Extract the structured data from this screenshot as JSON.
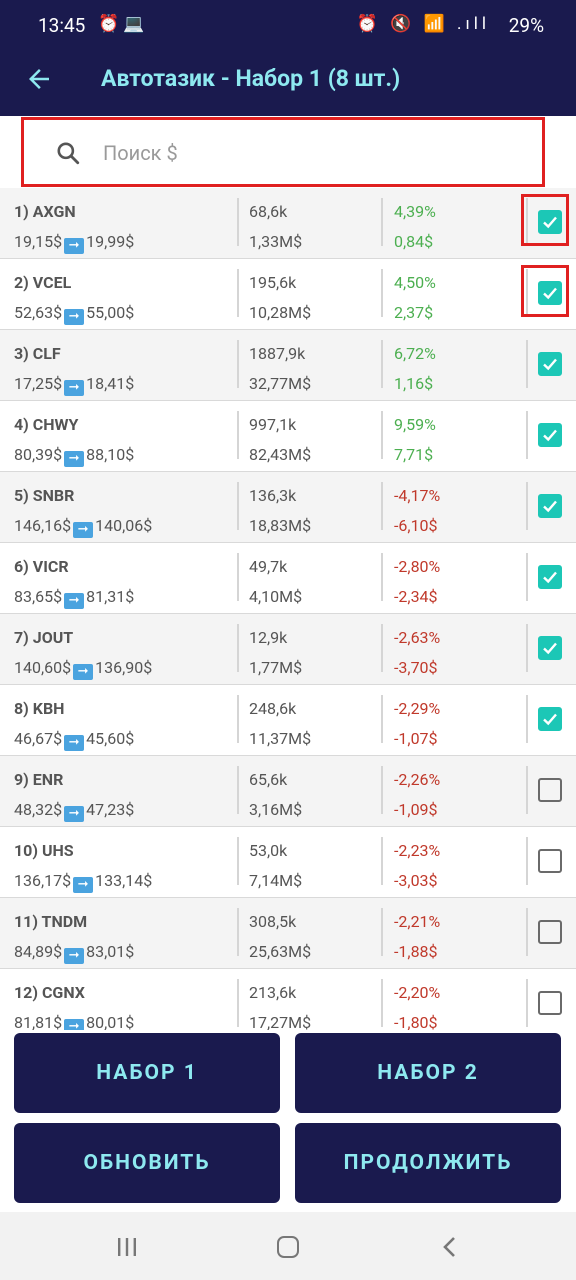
{
  "status_bar": {
    "time": "13:45",
    "left_icons": "⏰ 💻",
    "right_icons": "⏰ 🔇 📶 .ıll",
    "battery": "29%"
  },
  "app_bar": {
    "title": "Автотазик - Набор 1 (8 шт.)",
    "back_icon": "arrow-left-icon"
  },
  "search": {
    "placeholder": "Поиск $",
    "icon": "search-icon"
  },
  "rows": [
    {
      "ticker": "1) AXGN",
      "price_from": "19,15$",
      "price_to": "19,99$",
      "volume": "68,6k",
      "money": "1,33M$",
      "pct": "4,39%",
      "chg": "0,84$",
      "direction": "up",
      "checked": true
    },
    {
      "ticker": "2) VCEL",
      "price_from": "52,63$",
      "price_to": "55,00$",
      "volume": "195,6k",
      "money": "10,28M$",
      "pct": "4,50%",
      "chg": "2,37$",
      "direction": "up",
      "checked": true
    },
    {
      "ticker": "3) CLF",
      "price_from": "17,25$",
      "price_to": "18,41$",
      "volume": "1887,9k",
      "money": "32,77M$",
      "pct": "6,72%",
      "chg": "1,16$",
      "direction": "up",
      "checked": true
    },
    {
      "ticker": "4) CHWY",
      "price_from": "80,39$",
      "price_to": "88,10$",
      "volume": "997,1k",
      "money": "82,43M$",
      "pct": "9,59%",
      "chg": "7,71$",
      "direction": "up",
      "checked": true
    },
    {
      "ticker": "5) SNBR",
      "price_from": "146,16$",
      "price_to": "140,06$",
      "volume": "136,3k",
      "money": "18,83M$",
      "pct": "-4,17%",
      "chg": "-6,10$",
      "direction": "down",
      "checked": true
    },
    {
      "ticker": "6) VICR",
      "price_from": "83,65$",
      "price_to": "81,31$",
      "volume": "49,7k",
      "money": "4,10M$",
      "pct": "-2,80%",
      "chg": "-2,34$",
      "direction": "down",
      "checked": true
    },
    {
      "ticker": "7) JOUT",
      "price_from": "140,60$",
      "price_to": "136,90$",
      "volume": "12,9k",
      "money": "1,77M$",
      "pct": "-2,63%",
      "chg": "-3,70$",
      "direction": "down",
      "checked": true
    },
    {
      "ticker": "8) KBH",
      "price_from": "46,67$",
      "price_to": "45,60$",
      "volume": "248,6k",
      "money": "11,37M$",
      "pct": "-2,29%",
      "chg": "-1,07$",
      "direction": "down",
      "checked": true
    },
    {
      "ticker": "9) ENR",
      "price_from": "48,32$",
      "price_to": "47,23$",
      "volume": "65,6k",
      "money": "3,16M$",
      "pct": "-2,26%",
      "chg": "-1,09$",
      "direction": "down",
      "checked": false
    },
    {
      "ticker": "10) UHS",
      "price_from": "136,17$",
      "price_to": "133,14$",
      "volume": "53,0k",
      "money": "7,14M$",
      "pct": "-2,23%",
      "chg": "-3,03$",
      "direction": "down",
      "checked": false
    },
    {
      "ticker": "11) TNDM",
      "price_from": "84,89$",
      "price_to": "83,01$",
      "volume": "308,5k",
      "money": "25,63M$",
      "pct": "-2,21%",
      "chg": "-1,88$",
      "direction": "down",
      "checked": false
    },
    {
      "ticker": "12) CGNX",
      "price_from": "81,81$",
      "price_to": "80,01$",
      "volume": "213,6k",
      "money": "17,27M$",
      "pct": "-2,20%",
      "chg": "-1,80$",
      "direction": "down",
      "checked": false
    }
  ],
  "buttons": {
    "set1": "НАБОР 1",
    "set2": "НАБОР 2",
    "refresh": "ОБНОВИТЬ",
    "continue": "ПРОДОЛЖИТЬ"
  },
  "colors": {
    "bar": "#1a1a4e",
    "accent": "#8ee9f0",
    "positive": "#4caf50",
    "negative": "#c0392b",
    "checkbox": "#1cc7b6",
    "highlight": "#e02020"
  },
  "nav_icons": [
    "recent-apps-icon",
    "home-icon",
    "nav-back-icon"
  ]
}
